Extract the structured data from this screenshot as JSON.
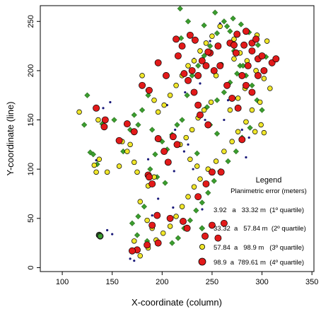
{
  "chart_data": {
    "type": "scatter",
    "title": "",
    "xlabel": "X-coordinate (column)",
    "ylabel": "Y-coordinate (line)",
    "xlim": [
      78,
      352
    ],
    "ylim": [
      -4,
      266
    ],
    "xticks": [
      100,
      150,
      200,
      250,
      300,
      350
    ],
    "yticks": [
      0,
      50,
      100,
      150,
      200,
      250
    ],
    "grid": false,
    "legend": {
      "placement": "bottom-right",
      "title": "Legend",
      "subtitle": "Planimetric error (meters)",
      "entries": [
        "3.92   a   33.32 m  (1º quartile)",
        "33.32  a   57.84 m  (2º quartile)",
        "57.84  a   98.9 m   (3º quartile)",
        "98.9  a  789.61 m  (4º quartile)"
      ]
    },
    "series": [
      {
        "marker": "dot-navy",
        "color": "#1a1a7a",
        "points": [
          [
            148,
            168
          ],
          [
            141,
            162
          ],
          [
            134,
            109
          ],
          [
            145,
            38
          ],
          [
            150,
            34
          ],
          [
            205,
            165
          ],
          [
            223,
            178
          ],
          [
            248,
            230
          ],
          [
            258,
            248
          ],
          [
            232,
            212
          ],
          [
            266,
            170
          ],
          [
            262,
            150
          ],
          [
            243,
            150
          ],
          [
            213,
            140
          ],
          [
            226,
            125
          ],
          [
            212,
            98
          ],
          [
            222,
            118
          ],
          [
            284,
            112
          ],
          [
            280,
            140
          ],
          [
            287,
            132
          ],
          [
            168,
            9
          ],
          [
            172,
            7
          ],
          [
            190,
            53
          ],
          [
            211,
            61
          ],
          [
            231,
            100
          ],
          [
            238,
            187
          ],
          [
            186,
            110
          ],
          [
            196,
            70
          ]
        ]
      },
      {
        "marker": "diamond-green",
        "color": "#3a9e2e",
        "points": [
          [
            125,
            175
          ],
          [
            122,
            145
          ],
          [
            128,
            117
          ],
          [
            131,
            115
          ],
          [
            135,
            105
          ],
          [
            140,
            146
          ],
          [
            152,
            150
          ],
          [
            161,
            118
          ],
          [
            168,
            140
          ],
          [
            172,
            155
          ],
          [
            176,
            145
          ],
          [
            180,
            160
          ],
          [
            186,
            175
          ],
          [
            190,
            140
          ],
          [
            197,
            130
          ],
          [
            205,
            120
          ],
          [
            210,
            135
          ],
          [
            215,
            145
          ],
          [
            220,
            150
          ],
          [
            225,
            175
          ],
          [
            230,
            195
          ],
          [
            236,
            205
          ],
          [
            242,
            215
          ],
          [
            248,
            225
          ],
          [
            255,
            238
          ],
          [
            262,
            250
          ],
          [
            268,
            240
          ],
          [
            272,
            220
          ],
          [
            278,
            205
          ],
          [
            284,
            195
          ],
          [
            290,
            185
          ],
          [
            295,
            170
          ],
          [
            300,
            160
          ],
          [
            288,
            142
          ],
          [
            280,
            132
          ],
          [
            274,
            118
          ],
          [
            266,
            108
          ],
          [
            258,
            98
          ],
          [
            252,
            88
          ],
          [
            246,
            76
          ],
          [
            240,
            66
          ],
          [
            234,
            58
          ],
          [
            228,
            48
          ],
          [
            222,
            40
          ],
          [
            216,
            30
          ],
          [
            210,
            25
          ],
          [
            203,
            86
          ],
          [
            195,
            92
          ],
          [
            188,
            100
          ],
          [
            182,
            62
          ],
          [
            176,
            52
          ],
          [
            170,
            45
          ],
          [
            175,
            33
          ],
          [
            185,
            27
          ],
          [
            193,
            115
          ],
          [
            200,
            128
          ],
          [
            245,
            163
          ],
          [
            255,
            170
          ],
          [
            262,
            178
          ],
          [
            268,
            188
          ],
          [
            275,
            197
          ],
          [
            281,
            205
          ],
          [
            248,
            145
          ],
          [
            255,
            136
          ],
          [
            235,
            116
          ],
          [
            219,
            233
          ],
          [
            218,
            263
          ],
          [
            226,
            250
          ],
          [
            242,
            246
          ],
          [
            253,
            259
          ],
          [
            265,
            245
          ],
          [
            271,
            253
          ],
          [
            279,
            247
          ],
          [
            287,
            239
          ],
          [
            296,
            226
          ],
          [
            304,
            214
          ]
        ]
      },
      {
        "marker": "circle-yellow",
        "color": "#f0e62a",
        "points": [
          [
            117,
            158
          ],
          [
            136,
            150
          ],
          [
            137,
            110
          ],
          [
            145,
            97
          ],
          [
            132,
            104
          ],
          [
            134,
            97
          ],
          [
            157,
            103
          ],
          [
            165,
            118
          ],
          [
            160,
            128
          ],
          [
            168,
            125
          ],
          [
            172,
            107
          ],
          [
            175,
            97
          ],
          [
            180,
            195
          ],
          [
            186,
            180
          ],
          [
            192,
            170
          ],
          [
            196,
            158
          ],
          [
            202,
            165
          ],
          [
            208,
            175
          ],
          [
            214,
            185
          ],
          [
            220,
            195
          ],
          [
            226,
            205
          ],
          [
            232,
            210
          ],
          [
            238,
            220
          ],
          [
            244,
            228
          ],
          [
            250,
            235
          ],
          [
            258,
            245
          ],
          [
            272,
            232
          ],
          [
            278,
            218
          ],
          [
            285,
            210
          ],
          [
            294,
            200
          ],
          [
            302,
            192
          ],
          [
            308,
            182
          ],
          [
            298,
            168
          ],
          [
            290,
            160
          ],
          [
            284,
            148
          ],
          [
            276,
            138
          ],
          [
            270,
            128
          ],
          [
            262,
            118
          ],
          [
            254,
            108
          ],
          [
            246,
            100
          ],
          [
            238,
            90
          ],
          [
            232,
            82
          ],
          [
            226,
            72
          ],
          [
            220,
            62
          ],
          [
            214,
            52
          ],
          [
            208,
            42
          ],
          [
            201,
            35
          ],
          [
            194,
            28
          ],
          [
            186,
            20
          ],
          [
            178,
            12
          ],
          [
            172,
            27
          ],
          [
            178,
            67
          ],
          [
            186,
            83
          ],
          [
            192,
            92
          ],
          [
            218,
            125
          ],
          [
            224,
            132
          ],
          [
            230,
            140
          ],
          [
            236,
            152
          ],
          [
            242,
            160
          ],
          [
            249,
            168
          ],
          [
            268,
            160
          ],
          [
            276,
            172
          ],
          [
            283,
            182
          ],
          [
            293,
            138
          ],
          [
            299,
            145
          ],
          [
            302,
            137
          ],
          [
            235,
            103
          ],
          [
            228,
            110
          ],
          [
            272,
            212
          ],
          [
            259,
            206
          ],
          [
            254,
            195
          ],
          [
            295,
            236
          ],
          [
            305,
            230
          ],
          [
            185,
            48
          ],
          [
            190,
            40
          ]
        ]
      },
      {
        "marker": "circle-red",
        "color": "#e21a1a",
        "points": [
          [
            134,
            162
          ],
          [
            143,
            150
          ],
          [
            142,
            143
          ],
          [
            157,
            129
          ],
          [
            165,
            146
          ],
          [
            172,
            138
          ],
          [
            180,
            185
          ],
          [
            186,
            94
          ],
          [
            187,
            92
          ],
          [
            190,
            85
          ],
          [
            196,
            131
          ],
          [
            202,
            118
          ],
          [
            206,
            107
          ],
          [
            211,
            133
          ],
          [
            215,
            125
          ],
          [
            214,
            232
          ],
          [
            222,
            197
          ],
          [
            226,
            190
          ],
          [
            232,
            178
          ],
          [
            236,
            165
          ],
          [
            238,
            155
          ],
          [
            246,
            145
          ],
          [
            252,
            200
          ],
          [
            258,
            205
          ],
          [
            265,
            185
          ],
          [
            270,
            172
          ],
          [
            276,
            162
          ],
          [
            284,
            185
          ],
          [
            290,
            178
          ],
          [
            296,
            195
          ],
          [
            302,
            200
          ],
          [
            310,
            208
          ],
          [
            314,
            212
          ],
          [
            286,
            205
          ],
          [
            280,
            195
          ],
          [
            274,
            218
          ],
          [
            268,
            228
          ],
          [
            275,
            237
          ],
          [
            282,
            226
          ],
          [
            290,
            220
          ],
          [
            296,
            212
          ],
          [
            284,
            240
          ],
          [
            290,
            228
          ],
          [
            294,
            232
          ],
          [
            300,
            215
          ],
          [
            256,
            225
          ],
          [
            248,
            218
          ],
          [
            244,
            205
          ],
          [
            236,
            195
          ],
          [
            240,
            210
          ],
          [
            230,
            200
          ],
          [
            216,
            215
          ],
          [
            204,
            195
          ],
          [
            196,
            208
          ],
          [
            187,
            180
          ],
          [
            259,
            97
          ],
          [
            280,
            130
          ],
          [
            195,
            53
          ],
          [
            208,
            50
          ],
          [
            190,
            43
          ],
          [
            196,
            25
          ],
          [
            185,
            23
          ],
          [
            175,
            18
          ],
          [
            170,
            17
          ],
          [
            221,
            47
          ],
          [
            225,
            40
          ],
          [
            243,
            32
          ],
          [
            250,
            43
          ],
          [
            256,
            30
          ],
          [
            262,
            45
          ],
          [
            236,
            72
          ],
          [
            244,
            85
          ],
          [
            250,
            97
          ],
          [
            220,
            225
          ],
          [
            228,
            236
          ],
          [
            233,
            231
          ],
          [
            246,
            219
          ],
          [
            272,
            226
          ]
        ]
      },
      {
        "marker": "combo-green-dark",
        "color": "#1a1a1a",
        "points": [
          [
            137,
            33
          ],
          [
            138,
            32
          ]
        ]
      }
    ]
  }
}
